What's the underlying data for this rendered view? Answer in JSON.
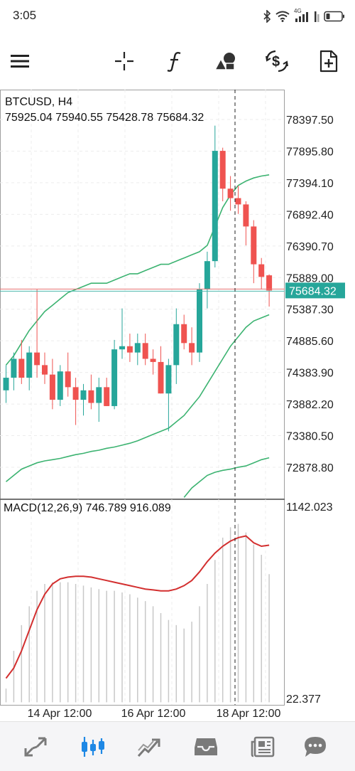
{
  "status_bar": {
    "time": "3:05",
    "icons": [
      "bluetooth-icon",
      "wifi-icon",
      "4g-signal-icon",
      "signal-icon",
      "battery-icon"
    ],
    "network_label": "4G"
  },
  "toolbar": {
    "items": [
      "menu-icon",
      "crosshair-icon",
      "indicators-icon",
      "objects-icon",
      "trade-icon",
      "new-order-icon"
    ]
  },
  "chart": {
    "symbol": "BTCUSD, H4",
    "ohlc": "75925.04 75940.55 75428.78 75684.32",
    "current_price_label": "75684.32",
    "price_ticks": [
      "78397.50",
      "77895.80",
      "77394.10",
      "76892.40",
      "76390.70",
      "75889.00",
      "75387.30",
      "74885.60",
      "74383.90",
      "73882.20",
      "73380.50",
      "72878.80"
    ],
    "macd_label": "MACD(12,26,9) 746.789 916.089",
    "macd_ticks": [
      "1142.023",
      "22.377"
    ],
    "time_ticks": [
      "14 Apr 12:00",
      "16 Apr 12:00",
      "18 Apr 12:00"
    ]
  },
  "colors": {
    "bull": "#26a69a",
    "bear": "#ef5350",
    "band": "#3cb371",
    "macd_signal": "#d32f2f",
    "histogram": "#c8c8c8",
    "price_tag": "#26a69a"
  },
  "chart_data": {
    "type": "candlestick",
    "title": "BTCUSD, H4",
    "xlabel": "",
    "ylabel": "",
    "ylim": [
      72400,
      78700
    ],
    "x_ticks": [
      "14 Apr 12:00",
      "16 Apr 12:00",
      "18 Apr 12:00"
    ],
    "candles": [
      {
        "o": 74100,
        "h": 74500,
        "l": 73900,
        "c": 74300
      },
      {
        "o": 74300,
        "h": 74700,
        "l": 74100,
        "c": 74600
      },
      {
        "o": 74600,
        "h": 74900,
        "l": 74200,
        "c": 74300
      },
      {
        "o": 74300,
        "h": 74800,
        "l": 74100,
        "c": 74700
      },
      {
        "o": 74700,
        "h": 75700,
        "l": 74300,
        "c": 74500
      },
      {
        "o": 74500,
        "h": 74700,
        "l": 74200,
        "c": 74350
      },
      {
        "o": 74350,
        "h": 74600,
        "l": 73800,
        "c": 73950
      },
      {
        "o": 73950,
        "h": 74500,
        "l": 73850,
        "c": 74400
      },
      {
        "o": 74400,
        "h": 74700,
        "l": 74000,
        "c": 74150
      },
      {
        "o": 74150,
        "h": 74300,
        "l": 73550,
        "c": 73950
      },
      {
        "o": 73950,
        "h": 74200,
        "l": 73700,
        "c": 74100
      },
      {
        "o": 74100,
        "h": 74350,
        "l": 73800,
        "c": 73900
      },
      {
        "o": 73900,
        "h": 74300,
        "l": 73600,
        "c": 74150
      },
      {
        "o": 74150,
        "h": 74300,
        "l": 73850,
        "c": 73850
      },
      {
        "o": 73850,
        "h": 74900,
        "l": 73800,
        "c": 74750
      },
      {
        "o": 74750,
        "h": 75400,
        "l": 74600,
        "c": 74800
      },
      {
        "o": 74800,
        "h": 75000,
        "l": 74550,
        "c": 74700
      },
      {
        "o": 74700,
        "h": 75000,
        "l": 74500,
        "c": 74850
      },
      {
        "o": 74850,
        "h": 75000,
        "l": 74500,
        "c": 74600
      },
      {
        "o": 74600,
        "h": 74750,
        "l": 74350,
        "c": 74550
      },
      {
        "o": 74550,
        "h": 74800,
        "l": 74050,
        "c": 74050
      },
      {
        "o": 74050,
        "h": 74600,
        "l": 73450,
        "c": 74500
      },
      {
        "o": 74500,
        "h": 75400,
        "l": 74200,
        "c": 75150
      },
      {
        "o": 75150,
        "h": 75300,
        "l": 74750,
        "c": 74850
      },
      {
        "o": 74850,
        "h": 75100,
        "l": 74500,
        "c": 74700
      },
      {
        "o": 74700,
        "h": 75800,
        "l": 74550,
        "c": 75700
      },
      {
        "o": 75700,
        "h": 76300,
        "l": 75400,
        "c": 76150
      },
      {
        "o": 76150,
        "h": 78300,
        "l": 76050,
        "c": 77900
      },
      {
        "o": 77900,
        "h": 77950,
        "l": 77100,
        "c": 77300
      },
      {
        "o": 77300,
        "h": 77500,
        "l": 76950,
        "c": 77150
      },
      {
        "o": 77150,
        "h": 77350,
        "l": 76900,
        "c": 77050
      },
      {
        "o": 77050,
        "h": 77100,
        "l": 76400,
        "c": 76700
      },
      {
        "o": 76700,
        "h": 76800,
        "l": 75800,
        "c": 76100
      },
      {
        "o": 76100,
        "h": 76200,
        "l": 75700,
        "c": 75900
      },
      {
        "o": 75925.04,
        "h": 75940.55,
        "l": 75428.78,
        "c": 75684.32
      }
    ],
    "bollinger_upper": [
      74500,
      74650,
      74850,
      75050,
      75200,
      75350,
      75450,
      75550,
      75650,
      75700,
      75750,
      75800,
      75800,
      75800,
      75850,
      75900,
      75950,
      75950,
      76000,
      76050,
      76100,
      76100,
      76150,
      76200,
      76250,
      76300,
      76400,
      76700,
      77000,
      77200,
      77350,
      77420,
      77470,
      77500,
      77520
    ],
    "bollinger_lower": [
      72650,
      72750,
      72850,
      72900,
      72950,
      72980,
      73000,
      73020,
      73050,
      73080,
      73100,
      73130,
      73150,
      73180,
      73200,
      73230,
      73260,
      73300,
      73350,
      73400,
      73450,
      73500,
      73600,
      73700,
      73850,
      74000,
      74200,
      74400,
      74600,
      74800,
      74950,
      75100,
      75200,
      75250,
      75300
    ],
    "bollinger_lower_2": [
      72400,
      72550,
      72650,
      72750,
      72800,
      72830,
      72850,
      72880,
      72900,
      72950,
      73000,
      73030
    ],
    "macd": {
      "ylim": [
        -40,
        1180
      ],
      "histogram": [
        80,
        300,
        450,
        560,
        650,
        690,
        700,
        700,
        700,
        690,
        680,
        670,
        660,
        650,
        650,
        640,
        630,
        610,
        590,
        560,
        520,
        480,
        450,
        430,
        470,
        560,
        690,
        830,
        960,
        1020,
        1040,
        990,
        920,
        860,
        746.789
      ],
      "signal": [
        140,
        200,
        300,
        420,
        540,
        630,
        690,
        720,
        730,
        735,
        735,
        730,
        720,
        710,
        700,
        690,
        680,
        670,
        660,
        655,
        650,
        650,
        660,
        680,
        710,
        760,
        820,
        870,
        910,
        940,
        960,
        970,
        930,
        910,
        916.089
      ]
    }
  }
}
